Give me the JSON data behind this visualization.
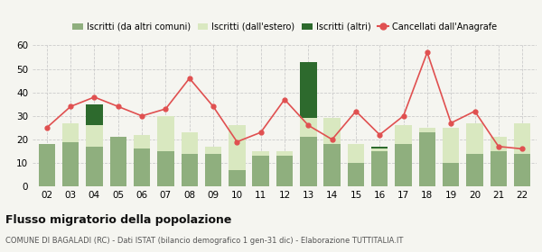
{
  "years": [
    "02",
    "03",
    "04",
    "05",
    "06",
    "07",
    "08",
    "09",
    "10",
    "11",
    "12",
    "13",
    "14",
    "15",
    "16",
    "17",
    "18",
    "19",
    "20",
    "21",
    "22"
  ],
  "iscritti_altri_comuni": [
    18,
    19,
    17,
    21,
    16,
    15,
    14,
    14,
    7,
    13,
    13,
    21,
    18,
    10,
    15,
    18,
    23,
    10,
    14,
    15,
    14
  ],
  "iscritti_estero": [
    0,
    8,
    9,
    0,
    6,
    15,
    9,
    3,
    19,
    2,
    2,
    8,
    11,
    8,
    1,
    8,
    2,
    15,
    13,
    6,
    13
  ],
  "iscritti_altri": [
    0,
    0,
    9,
    0,
    0,
    0,
    0,
    0,
    0,
    0,
    0,
    24,
    0,
    0,
    1,
    0,
    0,
    0,
    0,
    0,
    0
  ],
  "cancellati": [
    25,
    34,
    38,
    34,
    30,
    33,
    46,
    34,
    19,
    23,
    37,
    26,
    20,
    32,
    22,
    30,
    57,
    27,
    32,
    17,
    16
  ],
  "color_altri_comuni": "#8faf7e",
  "color_estero": "#d9e8c0",
  "color_altri": "#2d6a2d",
  "color_cancellati": "#e05050",
  "title": "Flusso migratorio della popolazione",
  "subtitle": "COMUNE DI BAGALADI (RC) - Dati ISTAT (bilancio demografico 1 gen-31 dic) - Elaborazione TUTTITALIA.IT",
  "legend_labels": [
    "Iscritti (da altri comuni)",
    "Iscritti (dall'estero)",
    "Iscritti (altri)",
    "Cancellati dall'Anagrafe"
  ],
  "ylim": [
    0,
    60
  ],
  "yticks": [
    0,
    10,
    20,
    30,
    40,
    50,
    60
  ],
  "background_color": "#f5f5f0"
}
